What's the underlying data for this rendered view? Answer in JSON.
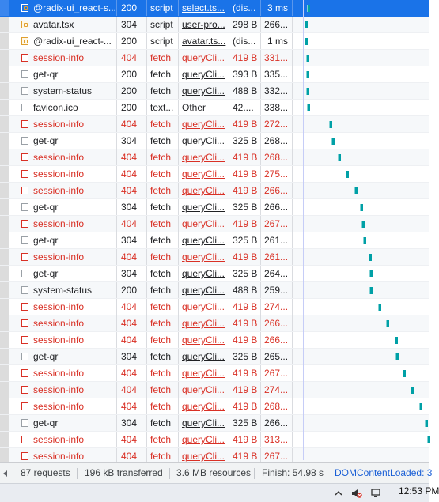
{
  "network": {
    "rows": [
      {
        "name": "@radix-ui_react-s...",
        "status": "200",
        "type": "script",
        "initiator": "select.ts...",
        "size": "(dis...",
        "time": "3 ms",
        "icon": "js-file-icon",
        "selected": true,
        "error": false,
        "wf": 388
      },
      {
        "name": "avatar.tsx",
        "status": "304",
        "type": "script",
        "initiator": "user-pro...",
        "size": "298 B",
        "time": "266...",
        "icon": "js-file-icon",
        "selected": false,
        "error": false,
        "wf": 385
      },
      {
        "name": "@radix-ui_react-...",
        "status": "200",
        "type": "script",
        "initiator": "avatar.ts...",
        "size": "(dis...",
        "time": "1 ms",
        "icon": "js-file-icon",
        "selected": false,
        "error": false,
        "wf": 385
      },
      {
        "name": "session-info",
        "status": "404",
        "type": "fetch",
        "initiator": "queryCli...",
        "size": "419 B",
        "time": "331...",
        "icon": "error-file-icon",
        "selected": false,
        "error": true,
        "wf": 387
      },
      {
        "name": "get-qr",
        "status": "200",
        "type": "fetch",
        "initiator": "queryCli...",
        "size": "393 B",
        "time": "335...",
        "icon": "document-icon",
        "selected": false,
        "error": false,
        "wf": 387
      },
      {
        "name": "system-status",
        "status": "200",
        "type": "fetch",
        "initiator": "queryCli...",
        "size": "488 B",
        "time": "332...",
        "icon": "document-icon",
        "selected": false,
        "error": false,
        "wf": 387
      },
      {
        "name": "favicon.ico",
        "status": "200",
        "type": "text...",
        "initiator": "Other",
        "size": "42....",
        "time": "338...",
        "icon": "document-icon",
        "selected": false,
        "error": false,
        "wf": 388
      },
      {
        "name": "session-info",
        "status": "404",
        "type": "fetch",
        "initiator": "queryCli...",
        "size": "419 B",
        "time": "272...",
        "icon": "error-file-icon",
        "selected": false,
        "error": true,
        "wf": 416
      },
      {
        "name": "get-qr",
        "status": "304",
        "type": "fetch",
        "initiator": "queryCli...",
        "size": "325 B",
        "time": "268...",
        "icon": "document-icon",
        "selected": false,
        "error": false,
        "wf": 419
      },
      {
        "name": "session-info",
        "status": "404",
        "type": "fetch",
        "initiator": "queryCli...",
        "size": "419 B",
        "time": "268...",
        "icon": "error-file-icon",
        "selected": false,
        "error": true,
        "wf": 427
      },
      {
        "name": "session-info",
        "status": "404",
        "type": "fetch",
        "initiator": "queryCli...",
        "size": "419 B",
        "time": "275...",
        "icon": "error-file-icon",
        "selected": false,
        "error": true,
        "wf": 437
      },
      {
        "name": "session-info",
        "status": "404",
        "type": "fetch",
        "initiator": "queryCli...",
        "size": "419 B",
        "time": "266...",
        "icon": "error-file-icon",
        "selected": false,
        "error": true,
        "wf": 448
      },
      {
        "name": "get-qr",
        "status": "304",
        "type": "fetch",
        "initiator": "queryCli...",
        "size": "325 B",
        "time": "266...",
        "icon": "document-icon",
        "selected": false,
        "error": false,
        "wf": 455
      },
      {
        "name": "session-info",
        "status": "404",
        "type": "fetch",
        "initiator": "queryCli...",
        "size": "419 B",
        "time": "267...",
        "icon": "error-file-icon",
        "selected": false,
        "error": true,
        "wf": 457
      },
      {
        "name": "get-qr",
        "status": "304",
        "type": "fetch",
        "initiator": "queryCli...",
        "size": "325 B",
        "time": "261...",
        "icon": "document-icon",
        "selected": false,
        "error": false,
        "wf": 459
      },
      {
        "name": "session-info",
        "status": "404",
        "type": "fetch",
        "initiator": "queryCli...",
        "size": "419 B",
        "time": "261...",
        "icon": "error-file-icon",
        "selected": false,
        "error": true,
        "wf": 466
      },
      {
        "name": "get-qr",
        "status": "304",
        "type": "fetch",
        "initiator": "queryCli...",
        "size": "325 B",
        "time": "264...",
        "icon": "document-icon",
        "selected": false,
        "error": false,
        "wf": 467
      },
      {
        "name": "system-status",
        "status": "200",
        "type": "fetch",
        "initiator": "queryCli...",
        "size": "488 B",
        "time": "259...",
        "icon": "document-icon",
        "selected": false,
        "error": false,
        "wf": 467
      },
      {
        "name": "session-info",
        "status": "404",
        "type": "fetch",
        "initiator": "queryCli...",
        "size": "419 B",
        "time": "274...",
        "icon": "error-file-icon",
        "selected": false,
        "error": true,
        "wf": 478
      },
      {
        "name": "session-info",
        "status": "404",
        "type": "fetch",
        "initiator": "queryCli...",
        "size": "419 B",
        "time": "266...",
        "icon": "error-file-icon",
        "selected": false,
        "error": true,
        "wf": 488
      },
      {
        "name": "session-info",
        "status": "404",
        "type": "fetch",
        "initiator": "queryCli...",
        "size": "419 B",
        "time": "266...",
        "icon": "error-file-icon",
        "selected": false,
        "error": true,
        "wf": 499
      },
      {
        "name": "get-qr",
        "status": "304",
        "type": "fetch",
        "initiator": "queryCli...",
        "size": "325 B",
        "time": "265...",
        "icon": "document-icon",
        "selected": false,
        "error": false,
        "wf": 500
      },
      {
        "name": "session-info",
        "status": "404",
        "type": "fetch",
        "initiator": "queryCli...",
        "size": "419 B",
        "time": "267...",
        "icon": "error-file-icon",
        "selected": false,
        "error": true,
        "wf": 509
      },
      {
        "name": "session-info",
        "status": "404",
        "type": "fetch",
        "initiator": "queryCli...",
        "size": "419 B",
        "time": "274...",
        "icon": "error-file-icon",
        "selected": false,
        "error": true,
        "wf": 519
      },
      {
        "name": "session-info",
        "status": "404",
        "type": "fetch",
        "initiator": "queryCli...",
        "size": "419 B",
        "time": "268...",
        "icon": "error-file-icon",
        "selected": false,
        "error": true,
        "wf": 530
      },
      {
        "name": "get-qr",
        "status": "304",
        "type": "fetch",
        "initiator": "queryCli...",
        "size": "325 B",
        "time": "266...",
        "icon": "document-icon",
        "selected": false,
        "error": false,
        "wf": 537
      },
      {
        "name": "session-info",
        "status": "404",
        "type": "fetch",
        "initiator": "queryCli...",
        "size": "419 B",
        "time": "313...",
        "icon": "error-file-icon",
        "selected": false,
        "error": true,
        "wf": 540
      },
      {
        "name": "session-info",
        "status": "404",
        "type": "fetch",
        "initiator": "queryCli...",
        "size": "419 B",
        "time": "267...",
        "icon": "error-file-icon",
        "selected": false,
        "error": true,
        "wf": -1
      }
    ]
  },
  "status_bar": {
    "requests": "87 requests",
    "transferred": "196 kB transferred",
    "resources": "3.6 MB resources",
    "finish": "Finish: 54.98 s",
    "dom_content_loaded": "DOMContentLoaded: 3"
  },
  "taskbar": {
    "clock": "12:53 PM"
  },
  "colors": {
    "selected_row": "#1a73e8",
    "error_text": "#d93025",
    "waterfall_bar": "#00a0a6",
    "dom_loaded_line": "#3b5bdb"
  }
}
